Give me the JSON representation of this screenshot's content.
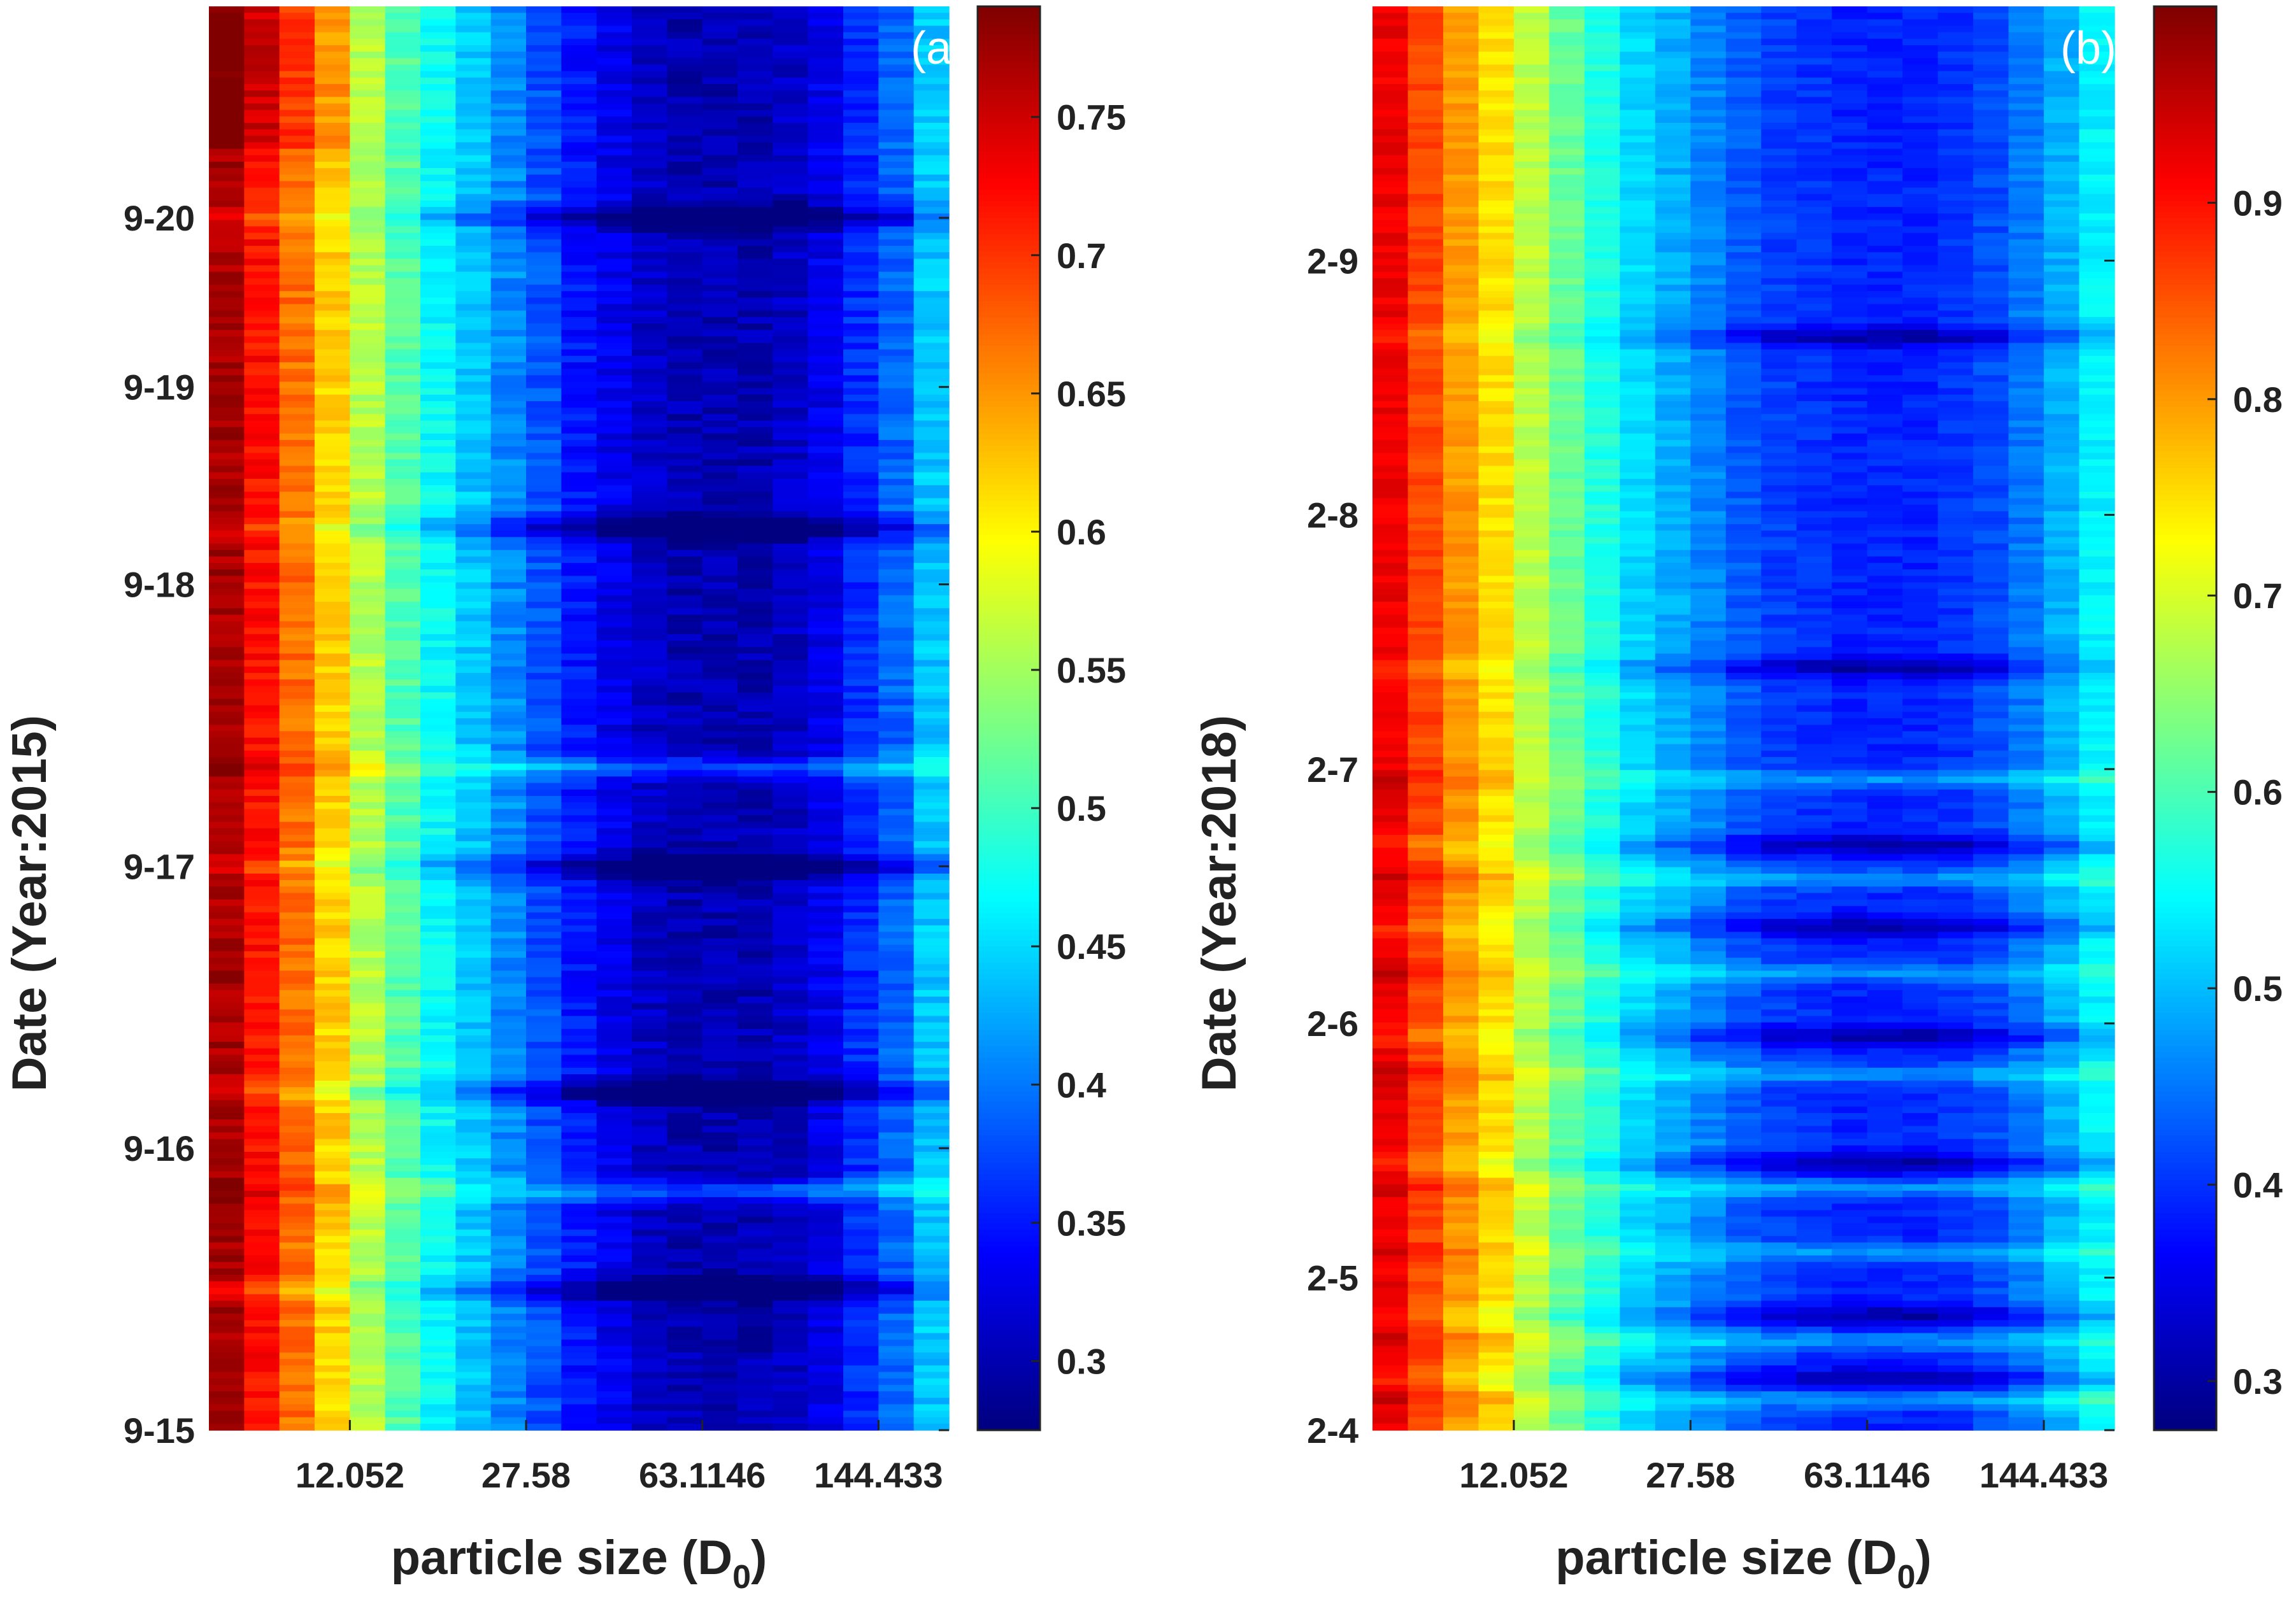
{
  "chart_data": [
    {
      "type": "heatmap",
      "panel": "(a)",
      "xlabel": "particle size (D",
      "xlabel_sub": "0",
      "xlabel_close": ")",
      "ylabel": "Date (Year:2015)",
      "x_ticks": [
        "12.052",
        "27.58",
        "63.1146",
        "144.433"
      ],
      "x_tick_pos": [
        4,
        9,
        14,
        19
      ],
      "n_cols": 21,
      "y_ticks": [
        "9-15",
        "9-16",
        "9-17",
        "9-18",
        "9-19",
        "9-20"
      ],
      "y_tick_pos": [
        0,
        1,
        2,
        3,
        3.7,
        4.3
      ],
      "ylim": [
        0,
        5.05
      ],
      "colorbar": {
        "min": 0.275,
        "max": 0.79,
        "ticks": [
          "0.3",
          "0.35",
          "0.4",
          "0.45",
          "0.5",
          "0.55",
          "0.6",
          "0.65",
          "0.7",
          "0.75"
        ],
        "tick_values": [
          0.3,
          0.35,
          0.4,
          0.45,
          0.5,
          0.55,
          0.6,
          0.65,
          0.7,
          0.75
        ]
      },
      "column_profile": [
        0.77,
        0.72,
        0.67,
        0.62,
        0.56,
        0.51,
        0.47,
        0.44,
        0.41,
        0.38,
        0.35,
        0.33,
        0.31,
        0.3,
        0.3,
        0.3,
        0.31,
        0.33,
        0.36,
        0.39,
        0.44
      ],
      "dark_bands": [
        4.3,
        3.2,
        2.0,
        1.2,
        0.5
      ],
      "light_bands": [
        2.35,
        0.85
      ]
    },
    {
      "type": "heatmap",
      "panel": "(b)",
      "xlabel": "particle size (D",
      "xlabel_sub": "0",
      "xlabel_close": ")",
      "ylabel": "Date (Year:2018)",
      "x_ticks": [
        "12.052",
        "27.58",
        "63.1146",
        "144.433"
      ],
      "x_tick_pos": [
        4,
        9,
        14,
        19
      ],
      "n_cols": 21,
      "y_ticks": [
        "2-4",
        "2-5",
        "2-6",
        "2-7",
        "2-8",
        "2-9"
      ],
      "y_tick_pos": [
        0,
        0.6,
        1.6,
        2.6,
        3.6,
        4.6
      ],
      "ylim": [
        0,
        5.6
      ],
      "colorbar": {
        "min": 0.275,
        "max": 1.0,
        "ticks": [
          "0.3",
          "0.4",
          "0.5",
          "0.6",
          "0.7",
          "0.8",
          "0.9"
        ],
        "tick_values": [
          0.3,
          0.4,
          0.5,
          0.6,
          0.7,
          0.8,
          0.9
        ]
      },
      "column_profile": [
        0.92,
        0.86,
        0.8,
        0.75,
        0.68,
        0.62,
        0.57,
        0.52,
        0.49,
        0.46,
        0.43,
        0.41,
        0.4,
        0.39,
        0.39,
        0.39,
        0.4,
        0.42,
        0.45,
        0.49,
        0.54
      ],
      "dark_bands": [
        4.3,
        3.0,
        2.3,
        1.98,
        1.55,
        1.05,
        0.45,
        0.2
      ],
      "light_bands": [
        2.56,
        2.17,
        1.8,
        1.4,
        0.95,
        0.7,
        0.35,
        0.12
      ]
    }
  ]
}
